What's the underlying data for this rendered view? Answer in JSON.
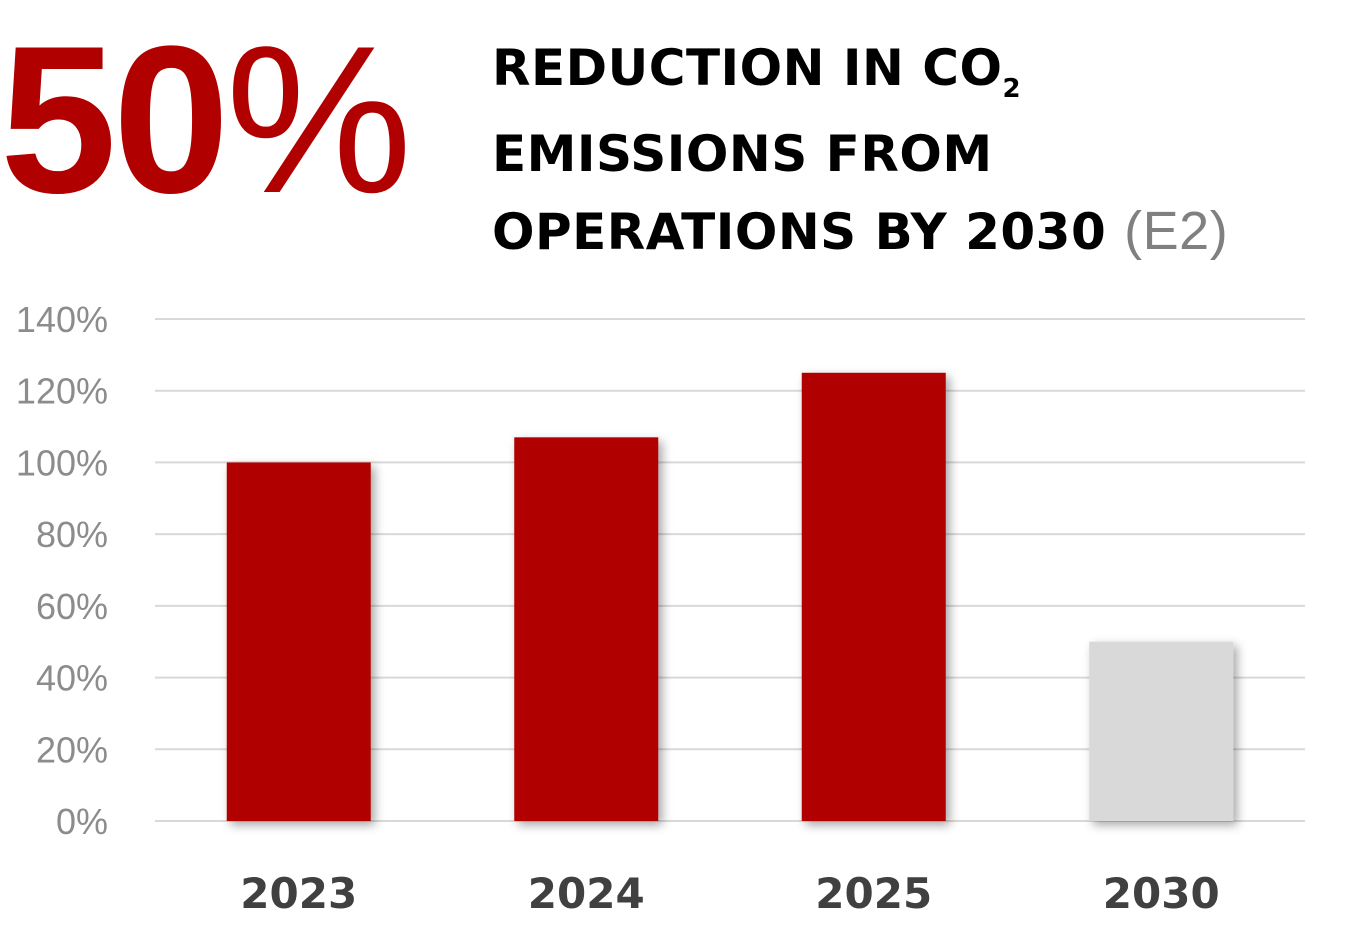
{
  "headline": {
    "big_number": "50",
    "big_number_suffix": "%",
    "line1": "REDUCTION IN CO",
    "line1_sub": "2",
    "line2": "EMISSIONS FROM",
    "line3": "OPERATIONS BY 2030",
    "line3_ref": "(E2)"
  },
  "chart_data": {
    "type": "bar",
    "categories": [
      "2023",
      "2024",
      "2025",
      "2030"
    ],
    "values": [
      100,
      107,
      125,
      50
    ],
    "value_unit": "%",
    "bar_colors": [
      "#b00000",
      "#b00000",
      "#b00000",
      "#d9d9d9"
    ],
    "ylim": [
      0,
      140
    ],
    "yticks": [
      0,
      20,
      40,
      60,
      80,
      100,
      120,
      140
    ],
    "ytick_labels": [
      "0%",
      "20%",
      "40%",
      "60%",
      "80%",
      "100%",
      "120%",
      "140%"
    ],
    "grid": true,
    "title": "",
    "xlabel": "",
    "ylabel": ""
  },
  "colors": {
    "accent": "#b00000",
    "target": "#d9d9d9",
    "grid": "#d9d9d9",
    "ref_text": "#808080"
  }
}
